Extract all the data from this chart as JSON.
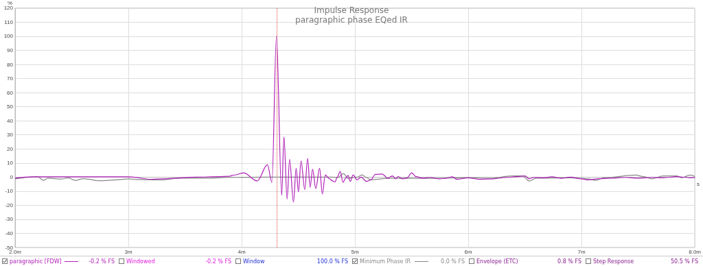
{
  "chart_data": {
    "type": "line",
    "title": "Impulse Response",
    "subtitle": "paragraphic phase EQed IR",
    "xlabel": "s",
    "ylabel": "%",
    "xlim": [
      2,
      8
    ],
    "xticks": [
      {
        "value": 2,
        "label": "2.0m"
      },
      {
        "value": 3,
        "label": "3m"
      },
      {
        "value": 4,
        "label": "4m"
      },
      {
        "value": 5,
        "label": "5m"
      },
      {
        "value": 6,
        "label": "6m"
      },
      {
        "value": 7,
        "label": "7m"
      },
      {
        "value": 8,
        "label": "8.0m"
      }
    ],
    "ylim": [
      -50,
      120
    ],
    "yticks": [
      -50,
      -40,
      -30,
      -20,
      -10,
      0,
      10,
      20,
      30,
      40,
      50,
      60,
      70,
      80,
      90,
      100,
      110,
      120
    ],
    "grid": true,
    "legend": "bottom",
    "ref_lines": [
      {
        "axis": "x",
        "value": 4.31,
        "color": "#e04040",
        "line_style": "dotted"
      }
    ],
    "annotations": [
      "-0.2 % FS",
      "Windowed",
      "-0.2 % FS",
      "Window",
      "100.0 % FS",
      "0.0 % FS",
      "Envelope (ETC)",
      "0.8 % FS",
      "Step Response",
      "50.5 % FS"
    ],
    "series": [
      {
        "name": "paragraphic [FDW]",
        "color": "#b020b8",
        "x": [
          2.0,
          2.15,
          2.5,
          3.0,
          3.21,
          3.3,
          3.6,
          3.8,
          3.89,
          3.936,
          4.016,
          4.137,
          4.227,
          4.267,
          4.307,
          4.353,
          4.373,
          4.401,
          4.423,
          4.457,
          4.481,
          4.501,
          4.524,
          4.557,
          4.582,
          4.604,
          4.626,
          4.654,
          4.688,
          4.712,
          4.738,
          4.774,
          4.802,
          4.824,
          4.844,
          4.87,
          4.894,
          4.918,
          4.939,
          4.959,
          4.983,
          5.019,
          5.055,
          5.103,
          5.139,
          5.18,
          5.24,
          5.29,
          5.33,
          5.36,
          5.38,
          5.42,
          5.46,
          5.5,
          5.54,
          5.6,
          5.66,
          5.74,
          5.8,
          5.86,
          5.9,
          6.0,
          6.1,
          6.22,
          6.34,
          6.42,
          6.5,
          6.54,
          6.58,
          6.66,
          6.74,
          6.82,
          6.9,
          7.0,
          7.06,
          7.14,
          7.26,
          7.38,
          7.5,
          7.62,
          7.72,
          7.84,
          7.96,
          8.0
        ],
        "values": [
          -0.8,
          0.2,
          0.2,
          0.2,
          -1.6,
          -1.2,
          0,
          0.3,
          0.6,
          1.5,
          3,
          -2.7,
          8.7,
          -3.7,
          100,
          -13,
          28.6,
          -15.6,
          12.5,
          -17.8,
          6.3,
          -10.5,
          11.4,
          -8.9,
          13.3,
          -7.3,
          5.6,
          -8.1,
          6.3,
          -12,
          1.6,
          -1.1,
          -2.7,
          -3.4,
          0,
          4,
          -3.7,
          -0.8,
          1.2,
          -3.1,
          1.6,
          -1.9,
          0,
          -3.1,
          -2,
          1.9,
          2.2,
          -0.8,
          0.8,
          -1.2,
          0.3,
          -1.2,
          -0.5,
          3,
          0.3,
          -0.8,
          -0.2,
          -1.2,
          -0.9,
          0.2,
          -1.6,
          -0.5,
          -1.6,
          -1.2,
          -0.2,
          0.3,
          0.8,
          -1.2,
          -0.2,
          -0.5,
          0.2,
          -0.9,
          0,
          -1.2,
          -2,
          -1.2,
          -0.8,
          -0.2,
          -0.8,
          -0.2,
          -0.5,
          0.3,
          -0.5,
          -0.3
        ]
      },
      {
        "name": "Minimum Phase IR",
        "color": "#888888",
        "x": [
          2.0,
          2.15,
          2.2,
          2.25,
          2.29,
          2.41,
          2.47,
          2.53,
          2.6,
          2.75,
          2.89,
          3.0,
          3.09,
          3.29,
          3.45,
          3.7,
          3.89,
          4.2,
          4.5,
          4.8,
          4.85,
          4.898,
          4.94,
          4.98,
          5.02,
          5.063,
          5.1,
          5.139,
          5.2,
          5.259,
          5.4,
          5.7,
          6.0,
          6.2,
          6.38,
          6.48,
          6.54,
          6.6,
          6.9,
          7.06,
          7.12,
          7.2,
          7.48,
          7.55,
          7.62,
          7.72,
          7.84,
          7.88,
          7.96,
          8.0
        ],
        "values": [
          -1.2,
          0,
          0.2,
          -2.3,
          -0.8,
          -1.4,
          -0.5,
          -2.3,
          -1.1,
          -2.6,
          -2,
          -1.2,
          -1.7,
          -2,
          -0.8,
          -0.8,
          -0.2,
          0,
          0,
          0,
          -0.3,
          2.5,
          -1,
          -0.3,
          0,
          1.6,
          -0.2,
          -1.9,
          -1.5,
          -1,
          -0.9,
          -0.9,
          -0.5,
          -0.9,
          0.8,
          0.8,
          -2.8,
          -0.8,
          -0.5,
          -1.2,
          -2.3,
          -0.5,
          1.4,
          0.3,
          -1.2,
          0.8,
          0.8,
          -0.5,
          1.4,
          0.5
        ]
      }
    ]
  }
}
